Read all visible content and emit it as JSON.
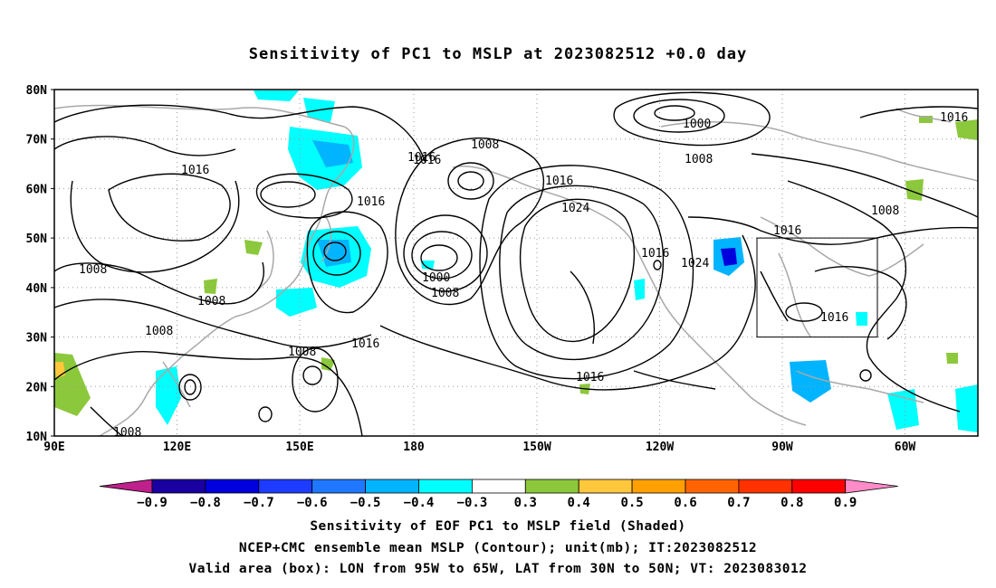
{
  "title": "Sensitivity of PC1 to MSLP at 2023082512 +0.0 day",
  "lat_labels": [
    "80N",
    "70N",
    "60N",
    "50N",
    "40N",
    "30N",
    "20N",
    "10N"
  ],
  "lon_labels": [
    "90E",
    "120E",
    "150E",
    "180",
    "150W",
    "120W",
    "90W",
    "60W"
  ],
  "contour_labels": [
    "1016",
    "1000",
    "1008",
    "1016",
    "1016",
    "1024",
    "1016",
    "1016",
    "1008",
    "1016",
    "1008",
    "1016",
    "1024",
    "1016",
    "1008",
    "1000",
    "1008",
    "1008",
    "1008",
    "1016",
    "1016",
    "1008",
    "1016",
    "1008"
  ],
  "colorbar": {
    "labels": [
      "-0.9",
      "-0.8",
      "-0.7",
      "-0.6",
      "-0.5",
      "-0.4",
      "-0.3",
      "0.3",
      "0.4",
      "0.5",
      "0.6",
      "0.7",
      "0.8",
      "0.9"
    ],
    "colors": [
      "#1a00a0",
      "#0000dd",
      "#1e3cff",
      "#1f78ff",
      "#00b4ff",
      "#00ffff",
      "#ffffff",
      "#8cc83c",
      "#ffc83c",
      "#ffa000",
      "#ff6400",
      "#ff3200",
      "#ff0000"
    ],
    "low_color": "#c0208c",
    "high_color": "#ff8cc8"
  },
  "captions": [
    "Sensitivity of EOF PC1 to MSLP field (Shaded)",
    "NCEP+CMC ensemble mean MSLP (Contour); unit(mb); IT:2023082512",
    "Valid area (box): LON from 95W to 65W, LAT from 30N to 50N; VT: 2023083012"
  ]
}
